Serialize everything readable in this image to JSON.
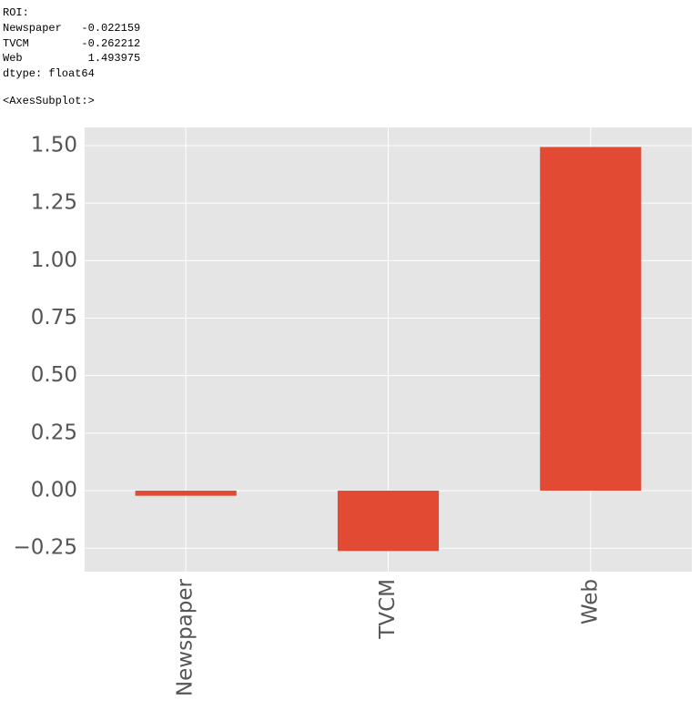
{
  "output": {
    "lines": [
      "ROI:",
      "Newspaper   -0.022159",
      "TVCM        -0.262212",
      "Web          1.493975",
      "dtype: float64"
    ],
    "repr": "<AxesSubplot:>"
  },
  "chart_data": {
    "type": "bar",
    "categories": [
      "Newspaper",
      "TVCM",
      "Web"
    ],
    "values": [
      -0.022159,
      -0.262212,
      1.493975
    ],
    "color": "#e24a33",
    "ylim": [
      -0.352,
      1.579
    ],
    "yticks": [
      {
        "value": -0.25,
        "label": "−0.25"
      },
      {
        "value": 0,
        "label": "0.00"
      },
      {
        "value": 0.25,
        "label": "0.25"
      },
      {
        "value": 0.5,
        "label": "0.50"
      },
      {
        "value": 0.75,
        "label": "0.75"
      },
      {
        "value": 1,
        "label": "1.00"
      },
      {
        "value": 1.25,
        "label": "1.25"
      },
      {
        "value": 1.5,
        "label": "1.50"
      }
    ],
    "grid": true
  }
}
